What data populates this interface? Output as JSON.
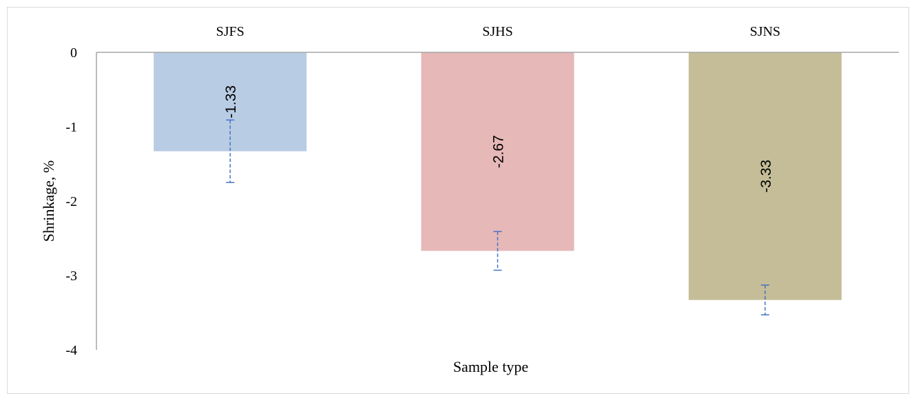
{
  "chart_data": {
    "type": "bar",
    "categories": [
      "SJFS",
      "SJHS",
      "SJNS"
    ],
    "values": [
      -1.33,
      -2.67,
      -3.33
    ],
    "data_labels": [
      "-1.33",
      "-2.67",
      "-3.33"
    ],
    "error_bars": [
      0.42,
      0.26,
      0.2
    ],
    "xlabel": "Sample type",
    "ylabel": "Shrinkage, %",
    "ylim": [
      -4,
      0
    ],
    "yticks": [
      "0",
      "-1",
      "-2",
      "-3",
      "-4"
    ],
    "category_label_position": "top",
    "bar_colors": [
      "#b8cce4",
      "#e6b8b7",
      "#c4bd97"
    ],
    "error_bar_color": "#4472c4",
    "legend": "none",
    "grid": false
  }
}
